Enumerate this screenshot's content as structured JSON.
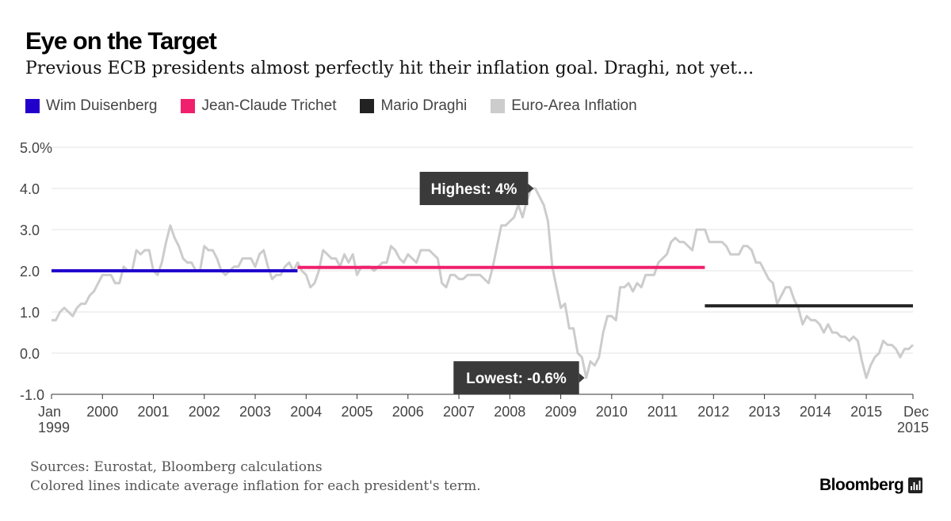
{
  "header": {
    "title": "Eye on the Target",
    "subtitle": "Previous ECB presidents almost perfectly hit their inflation goal. Draghi, not yet..."
  },
  "legend": [
    {
      "label": "Wim Duisenberg",
      "color": "#2200cc"
    },
    {
      "label": "Jean-Claude Trichet",
      "color": "#f0206e"
    },
    {
      "label": "Mario Draghi",
      "color": "#222222"
    },
    {
      "label": "Euro-Area Inflation",
      "color": "#cccccc"
    }
  ],
  "footer": {
    "sources": "Sources: Eurostat, Bloomberg calculations",
    "note": "Colored lines indicate average inflation for each president's term.",
    "brand": "Bloomberg",
    "brand_icon": "bloomberg-terminal-icon"
  },
  "chart_data": {
    "type": "line",
    "title": "Eye on the Target",
    "xlabel": "",
    "ylabel": "",
    "xlim": [
      1999.0,
      2015.9167
    ],
    "ylim": [
      -1.0,
      5.0
    ],
    "y_ticks": [
      -1,
      0,
      1,
      2,
      3,
      4,
      5
    ],
    "y_tick_labels": [
      "-1.0",
      "0.0",
      "1.0",
      "2.0",
      "3.0",
      "4.0",
      "5.0%"
    ],
    "x_ticks": [
      {
        "value": 1999.0,
        "line1": "Jan",
        "line2": "1999"
      },
      {
        "value": 2000.0,
        "line1": "2000",
        "line2": ""
      },
      {
        "value": 2001.0,
        "line1": "2001",
        "line2": ""
      },
      {
        "value": 2002.0,
        "line1": "2002",
        "line2": ""
      },
      {
        "value": 2003.0,
        "line1": "2003",
        "line2": ""
      },
      {
        "value": 2004.0,
        "line1": "2004",
        "line2": ""
      },
      {
        "value": 2005.0,
        "line1": "2005",
        "line2": ""
      },
      {
        "value": 2006.0,
        "line1": "2006",
        "line2": ""
      },
      {
        "value": 2007.0,
        "line1": "2007",
        "line2": ""
      },
      {
        "value": 2008.0,
        "line1": "2008",
        "line2": ""
      },
      {
        "value": 2009.0,
        "line1": "2009",
        "line2": ""
      },
      {
        "value": 2010.0,
        "line1": "2010",
        "line2": ""
      },
      {
        "value": 2011.0,
        "line1": "2011",
        "line2": ""
      },
      {
        "value": 2012.0,
        "line1": "2012",
        "line2": ""
      },
      {
        "value": 2013.0,
        "line1": "2013",
        "line2": ""
      },
      {
        "value": 2014.0,
        "line1": "2014",
        "line2": ""
      },
      {
        "value": 2015.0,
        "line1": "2015",
        "line2": ""
      },
      {
        "value": 2015.9167,
        "line1": "Dec",
        "line2": "2015"
      }
    ],
    "series": [
      {
        "name": "Euro-Area Inflation",
        "color": "#cccccc",
        "start": 1999.0,
        "step": 0.0833333,
        "values": [
          0.8,
          0.8,
          1.0,
          1.1,
          1.0,
          0.9,
          1.1,
          1.2,
          1.2,
          1.4,
          1.5,
          1.7,
          1.9,
          1.9,
          1.9,
          1.7,
          1.7,
          2.1,
          2.0,
          2.0,
          2.5,
          2.4,
          2.5,
          2.5,
          2.0,
          1.9,
          2.2,
          2.7,
          3.1,
          2.8,
          2.6,
          2.3,
          2.2,
          2.2,
          2.0,
          2.0,
          2.6,
          2.5,
          2.5,
          2.3,
          2.0,
          1.9,
          2.0,
          2.1,
          2.1,
          2.3,
          2.3,
          2.3,
          2.1,
          2.4,
          2.5,
          2.1,
          1.8,
          1.9,
          1.9,
          2.1,
          2.2,
          2.0,
          2.2,
          2.0,
          1.9,
          1.6,
          1.7,
          2.0,
          2.5,
          2.4,
          2.3,
          2.3,
          2.1,
          2.4,
          2.2,
          2.4,
          1.9,
          2.1,
          2.1,
          2.1,
          2.0,
          2.1,
          2.2,
          2.2,
          2.6,
          2.5,
          2.3,
          2.2,
          2.4,
          2.3,
          2.2,
          2.5,
          2.5,
          2.5,
          2.4,
          2.3,
          1.7,
          1.6,
          1.9,
          1.9,
          1.8,
          1.8,
          1.9,
          1.9,
          1.9,
          1.9,
          1.8,
          1.7,
          2.1,
          2.6,
          3.1,
          3.1,
          3.2,
          3.3,
          3.6,
          3.3,
          3.7,
          4.0,
          4.0,
          3.8,
          3.6,
          3.2,
          2.1,
          1.6,
          1.1,
          1.2,
          0.6,
          0.6,
          0.0,
          -0.1,
          -0.6,
          -0.2,
          -0.3,
          -0.1,
          0.5,
          0.9,
          0.9,
          0.8,
          1.6,
          1.6,
          1.7,
          1.5,
          1.7,
          1.6,
          1.9,
          1.9,
          1.9,
          2.2,
          2.3,
          2.4,
          2.7,
          2.8,
          2.7,
          2.7,
          2.6,
          2.5,
          3.0,
          3.0,
          3.0,
          2.7,
          2.7,
          2.7,
          2.7,
          2.6,
          2.4,
          2.4,
          2.4,
          2.6,
          2.6,
          2.5,
          2.2,
          2.2,
          2.0,
          1.8,
          1.7,
          1.2,
          1.4,
          1.6,
          1.6,
          1.3,
          1.1,
          0.7,
          0.9,
          0.8,
          0.8,
          0.7,
          0.5,
          0.7,
          0.5,
          0.5,
          0.4,
          0.4,
          0.3,
          0.4,
          0.3,
          -0.2,
          -0.6,
          -0.3,
          -0.1,
          0.0,
          0.3,
          0.2,
          0.2,
          0.1,
          -0.1,
          0.1,
          0.1,
          0.2
        ]
      },
      {
        "name": "Wim Duisenberg",
        "color": "#2200cc",
        "x": [
          1999.0,
          2003.83
        ],
        "values": [
          2.0,
          2.0
        ]
      },
      {
        "name": "Jean-Claude Trichet",
        "color": "#f0206e",
        "x": [
          2003.83,
          2011.83
        ],
        "values": [
          2.08,
          2.08
        ]
      },
      {
        "name": "Mario Draghi",
        "color": "#222222",
        "x": [
          2011.83,
          2015.9167
        ],
        "values": [
          1.15,
          1.15
        ]
      }
    ],
    "annotations": [
      {
        "name": "annotation-highest",
        "text": "Highest: 4%",
        "x": 2008.5,
        "y": 4.0,
        "side": "left"
      },
      {
        "name": "annotation-lowest",
        "text": "Lowest: -0.6%",
        "x": 2009.5,
        "y": -0.6,
        "side": "left"
      }
    ],
    "grid": true
  }
}
